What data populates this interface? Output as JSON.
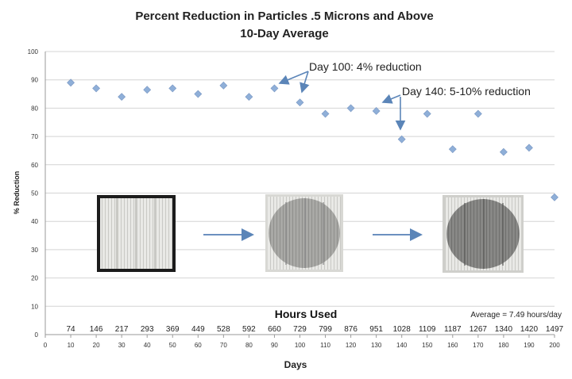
{
  "chart_data": {
    "type": "scatter",
    "title": "Percent Reduction in Particles .5 Microns and Above",
    "subtitle": "10-Day Average",
    "xlabel": "Days",
    "ylabel": "% Reduction",
    "xlim": [
      0,
      200
    ],
    "ylim": [
      0,
      100
    ],
    "x_ticks": [
      0,
      10,
      20,
      30,
      40,
      50,
      60,
      70,
      80,
      90,
      100,
      110,
      120,
      130,
      140,
      150,
      160,
      170,
      180,
      190,
      200
    ],
    "y_ticks": [
      0,
      10,
      20,
      30,
      40,
      50,
      60,
      70,
      80,
      90,
      100
    ],
    "grid": "horizontal",
    "marker_color": "#8fafd8",
    "points": [
      {
        "x": 10,
        "y": 89
      },
      {
        "x": 20,
        "y": 87
      },
      {
        "x": 30,
        "y": 84
      },
      {
        "x": 40,
        "y": 86.5
      },
      {
        "x": 50,
        "y": 87
      },
      {
        "x": 60,
        "y": 85
      },
      {
        "x": 70,
        "y": 88
      },
      {
        "x": 80,
        "y": 84
      },
      {
        "x": 90,
        "y": 87
      },
      {
        "x": 100,
        "y": 82
      },
      {
        "x": 110,
        "y": 78
      },
      {
        "x": 120,
        "y": 80
      },
      {
        "x": 130,
        "y": 79
      },
      {
        "x": 140,
        "y": 69
      },
      {
        "x": 150,
        "y": 78
      },
      {
        "x": 160,
        "y": 65.5
      },
      {
        "x": 170,
        "y": 78
      },
      {
        "x": 180,
        "y": 64.5
      },
      {
        "x": 190,
        "y": 66
      },
      {
        "x": 200,
        "y": 48.5
      }
    ],
    "hours_used_title": "Hours Used",
    "hours_used": [
      {
        "day": 10,
        "hours": "74"
      },
      {
        "day": 20,
        "hours": "146"
      },
      {
        "day": 30,
        "hours": "217"
      },
      {
        "day": 40,
        "hours": "293"
      },
      {
        "day": 50,
        "hours": "369"
      },
      {
        "day": 60,
        "hours": "449"
      },
      {
        "day": 70,
        "hours": "528"
      },
      {
        "day": 80,
        "hours": "592"
      },
      {
        "day": 90,
        "hours": "660"
      },
      {
        "day": 100,
        "hours": "729"
      },
      {
        "day": 110,
        "hours": "799"
      },
      {
        "day": 120,
        "hours": "876"
      },
      {
        "day": 130,
        "hours": "951"
      },
      {
        "day": 140,
        "hours": "1028"
      },
      {
        "day": 150,
        "hours": "1109"
      },
      {
        "day": 160,
        "hours": "1187"
      },
      {
        "day": 170,
        "hours": "1267"
      },
      {
        "day": 180,
        "hours": "1340"
      },
      {
        "day": 190,
        "hours": "1420"
      },
      {
        "day": 200,
        "hours": "1497"
      }
    ],
    "average_note": "Average = 7.49 hours/day",
    "annotations": [
      {
        "text": "Day 100: 4% reduction",
        "targets": [
          {
            "x": 90,
            "y": 87
          },
          {
            "x": 100,
            "y": 82
          }
        ]
      },
      {
        "text": "Day 140: 5-10% reduction",
        "targets": [
          {
            "x": 130,
            "y": 79
          },
          {
            "x": 140,
            "y": 69
          }
        ]
      }
    ],
    "filter_images": [
      {
        "name": "filter-image-new",
        "stage": "new",
        "day": 10
      },
      {
        "name": "filter-image-day-100",
        "stage": "day-100",
        "day": 100
      },
      {
        "name": "filter-image-day-200",
        "stage": "day-200",
        "day": 200
      }
    ]
  }
}
